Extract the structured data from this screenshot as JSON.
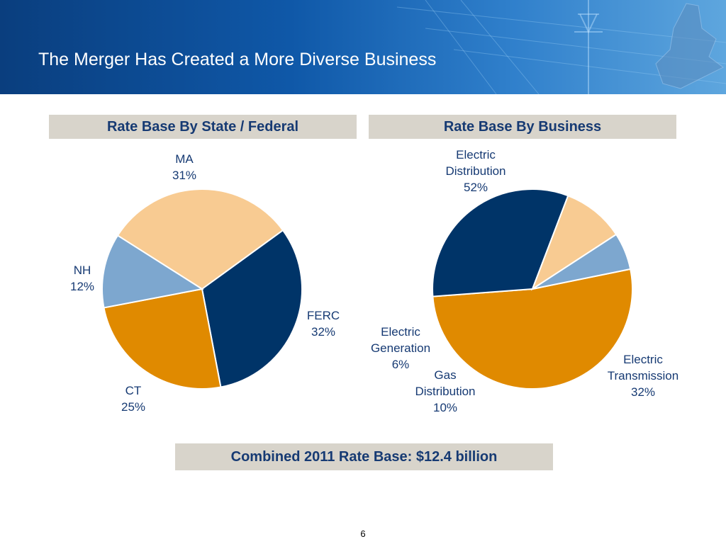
{
  "slide": {
    "title": "The Merger Has Created a More Diverse Business",
    "page_number": "6",
    "summary": "Combined 2011 Rate Base: $12.4 billion"
  },
  "chart_data": [
    {
      "type": "pie",
      "title": "Rate Base By State / Federal",
      "slices": [
        {
          "label_lines": [
            "MA"
          ],
          "value": 31,
          "value_text": "31%",
          "color": "#f8cb92"
        },
        {
          "label_lines": [
            "FERC"
          ],
          "value": 32,
          "value_text": "32%",
          "color": "#003468"
        },
        {
          "label_lines": [
            "CT"
          ],
          "value": 25,
          "value_text": "25%",
          "color": "#e08a00"
        },
        {
          "label_lines": [
            "NH"
          ],
          "value": 12,
          "value_text": "12%",
          "color": "#7da7cf"
        }
      ],
      "legend": "none"
    },
    {
      "type": "pie",
      "title": "Rate Base By Business",
      "slices": [
        {
          "label_lines": [
            "Electric",
            "Distribution"
          ],
          "value": 52,
          "value_text": "52%",
          "color": "#e08a00"
        },
        {
          "label_lines": [
            "Electric",
            "Transmission"
          ],
          "value": 32,
          "value_text": "32%",
          "color": "#003468"
        },
        {
          "label_lines": [
            "Gas",
            "Distribution"
          ],
          "value": 10,
          "value_text": "10%",
          "color": "#f8cb92"
        },
        {
          "label_lines": [
            "Electric",
            "Generation"
          ],
          "value": 6,
          "value_text": "6%",
          "color": "#7da7cf"
        }
      ],
      "legend": "none"
    }
  ]
}
